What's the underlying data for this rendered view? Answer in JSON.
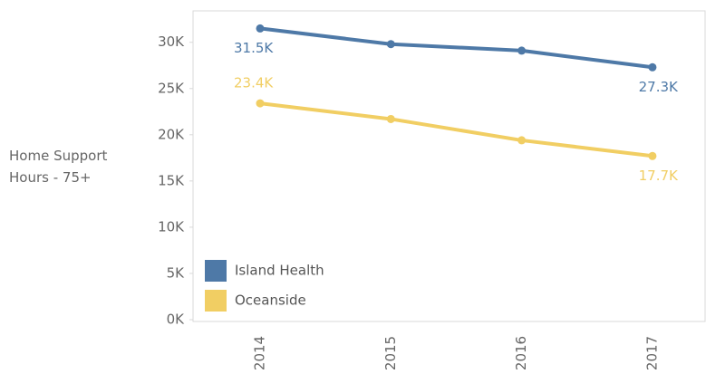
{
  "chart_data": {
    "type": "line",
    "y_label": "Home Support Hours - 75+",
    "categories": [
      "2014",
      "2015",
      "2016",
      "2017"
    ],
    "series": [
      {
        "name": "Island Health",
        "color": "#4e79a7",
        "values": [
          31500,
          29800,
          29100,
          27300
        ],
        "value_labels": [
          "31.5K",
          null,
          null,
          "27.3K"
        ]
      },
      {
        "name": "Oceanside",
        "color": "#f1ce63",
        "values": [
          23400,
          21700,
          19400,
          17700
        ],
        "value_labels": [
          "23.4K",
          null,
          null,
          "17.7K"
        ]
      }
    ],
    "ylim": [
      0,
      33400
    ],
    "yticks": [
      {
        "value": 0,
        "label": "0K"
      },
      {
        "value": 5000,
        "label": "5K"
      },
      {
        "value": 10000,
        "label": "10K"
      },
      {
        "value": 15000,
        "label": "15K"
      },
      {
        "value": 20000,
        "label": "20K"
      },
      {
        "value": 25000,
        "label": "25K"
      },
      {
        "value": 30000,
        "label": "30K"
      }
    ],
    "legend": "bottom-left"
  }
}
